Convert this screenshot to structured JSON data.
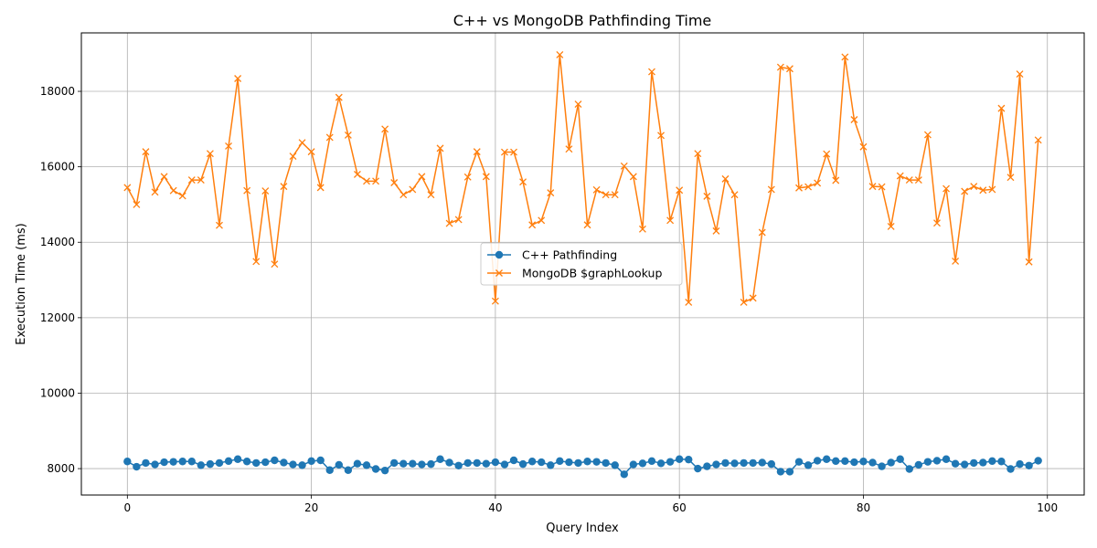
{
  "chart_data": {
    "type": "line",
    "title": "C++ vs MongoDB Pathfinding Time",
    "xlabel": "Query Index",
    "ylabel": "Execution Time (ms)",
    "xlim": [
      -5,
      104
    ],
    "ylim": [
      7300,
      19550
    ],
    "xticks": [
      0,
      20,
      40,
      60,
      80,
      100
    ],
    "yticks": [
      8000,
      10000,
      12000,
      14000,
      16000,
      18000
    ],
    "grid": true,
    "legend_position": "center-right",
    "series": [
      {
        "name": "C++ Pathfinding",
        "color": "#1f77b4",
        "marker": "circle",
        "values": [
          8190,
          8050,
          8150,
          8110,
          8170,
          8180,
          8190,
          8190,
          8090,
          8120,
          8150,
          8200,
          8250,
          8190,
          8150,
          8170,
          8220,
          8160,
          8110,
          8090,
          8200,
          8220,
          7960,
          8100,
          7960,
          8130,
          8090,
          7990,
          7950,
          8150,
          8130,
          8130,
          8110,
          8120,
          8250,
          8160,
          8080,
          8150,
          8150,
          8130,
          8170,
          8110,
          8220,
          8120,
          8190,
          8170,
          8090,
          8200,
          8170,
          8150,
          8190,
          8180,
          8150,
          8090,
          7850,
          8110,
          8140,
          8200,
          8140,
          8180,
          8250,
          8240,
          8000,
          8060,
          8110,
          8150,
          8140,
          8150,
          8150,
          8160,
          8120,
          7920,
          7920,
          8180,
          8090,
          8210,
          8250,
          8200,
          8200,
          8170,
          8190,
          8160,
          8060,
          8160,
          8250,
          7990,
          8100,
          8180,
          8210,
          8250,
          8130,
          8110,
          8150,
          8160,
          8200,
          8190,
          7990,
          8120,
          8080,
          8210
        ]
      },
      {
        "name": "MongoDB $graphLookup",
        "color": "#ff7f0e",
        "marker": "x",
        "values": [
          15450,
          15000,
          16400,
          15330,
          15740,
          15370,
          15230,
          15650,
          15650,
          16350,
          14450,
          16550,
          18340,
          15370,
          13490,
          15360,
          13420,
          15480,
          16280,
          16640,
          16400,
          15450,
          16780,
          17840,
          16840,
          15800,
          15620,
          15620,
          17000,
          15580,
          15260,
          15400,
          15740,
          15260,
          16490,
          14500,
          14600,
          15730,
          16400,
          15740,
          12440,
          16390,
          16390,
          15600,
          14460,
          14580,
          15310,
          18970,
          16470,
          17660,
          14460,
          15390,
          15260,
          15260,
          16020,
          15740,
          14350,
          18520,
          16830,
          14580,
          15380,
          12410,
          16350,
          15220,
          14300,
          15680,
          15260,
          12410,
          12520,
          14260,
          15400,
          18640,
          18600,
          15440,
          15470,
          15570,
          16340,
          15640,
          18910,
          17250,
          16530,
          15480,
          15470,
          14420,
          15760,
          15650,
          15650,
          16850,
          14510,
          15420,
          13500,
          15350,
          15480,
          15380,
          15400,
          17550,
          15720,
          18460,
          13480,
          16710
        ]
      }
    ]
  }
}
